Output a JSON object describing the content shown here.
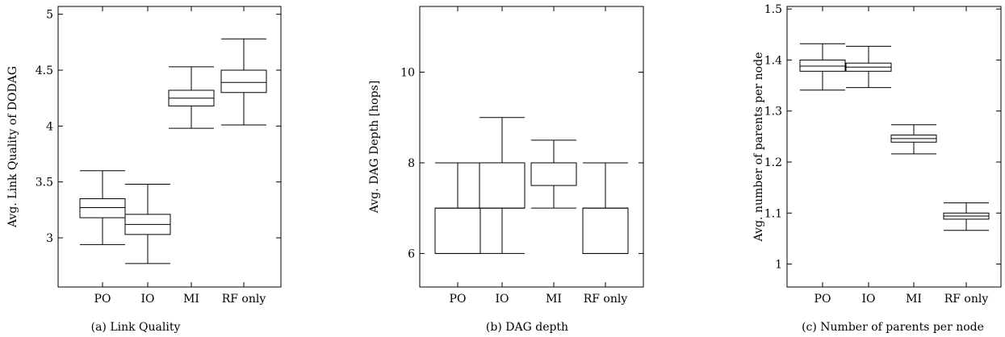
{
  "chart_data": [
    {
      "type": "box",
      "caption": "(a) Link Quality",
      "ylabel": "Avg. Link Quality of DODAG",
      "xlabel": "",
      "categories": [
        "PO",
        "IO",
        "MI",
        "RF only"
      ],
      "ylim": [
        2.56,
        5.07
      ],
      "yticks": [
        "3",
        "3.5",
        "4",
        "4.5",
        "5"
      ],
      "ytick_values": [
        3,
        3.5,
        4,
        4.5,
        5
      ],
      "grid": false,
      "boxes": [
        {
          "category": "PO",
          "whisker_low": 2.94,
          "q1": 3.18,
          "median": 3.27,
          "q3": 3.35,
          "whisker_high": 3.6
        },
        {
          "category": "IO",
          "whisker_low": 2.77,
          "q1": 3.03,
          "median": 3.12,
          "q3": 3.21,
          "whisker_high": 3.48
        },
        {
          "category": "MI",
          "whisker_low": 3.98,
          "q1": 4.18,
          "median": 4.25,
          "q3": 4.32,
          "whisker_high": 4.53
        },
        {
          "category": "RF only",
          "whisker_low": 4.01,
          "q1": 4.3,
          "median": 4.39,
          "q3": 4.5,
          "whisker_high": 4.78
        }
      ]
    },
    {
      "type": "box",
      "caption": "(b) DAG depth",
      "ylabel": "Avg. DAG Depth [hops]",
      "xlabel": "",
      "categories": [
        "PO",
        "IO",
        "MI",
        "RF only"
      ],
      "ylim": [
        5.26,
        11.45
      ],
      "yticks": [
        "6",
        "8",
        "10"
      ],
      "ytick_values": [
        6,
        8,
        10
      ],
      "grid": false,
      "boxes": [
        {
          "category": "PO",
          "whisker_low": 6,
          "q1": 6,
          "median": 7,
          "q3": 7,
          "whisker_high": 8
        },
        {
          "category": "IO",
          "whisker_low": 6,
          "q1": 7,
          "median": 7,
          "q3": 8,
          "whisker_high": 9
        },
        {
          "category": "MI",
          "whisker_low": 7,
          "q1": 7.5,
          "median": 8,
          "q3": 8,
          "whisker_high": 8.5
        },
        {
          "category": "RF only",
          "whisker_low": 6,
          "q1": 6,
          "median": 7,
          "q3": 7,
          "whisker_high": 8
        }
      ]
    },
    {
      "type": "box",
      "caption": "(c) Number of parents per node",
      "ylabel": "Avg. number of parents per node",
      "xlabel": "",
      "categories": [
        "PO",
        "IO",
        "MI",
        "RF only"
      ],
      "ylim": [
        0.955,
        1.505
      ],
      "yticks": [
        "1",
        "1.1",
        "1.2",
        "1.3",
        "1.4",
        "1.5"
      ],
      "ytick_values": [
        1,
        1.1,
        1.2,
        1.3,
        1.4,
        1.5
      ],
      "grid": false,
      "boxes": [
        {
          "category": "PO",
          "whisker_low": 1.341,
          "q1": 1.378,
          "median": 1.388,
          "q3": 1.4,
          "whisker_high": 1.432
        },
        {
          "category": "IO",
          "whisker_low": 1.346,
          "q1": 1.378,
          "median": 1.386,
          "q3": 1.394,
          "whisker_high": 1.427
        },
        {
          "category": "MI",
          "whisker_low": 1.216,
          "q1": 1.239,
          "median": 1.246,
          "q3": 1.253,
          "whisker_high": 1.273
        },
        {
          "category": "RF only",
          "whisker_low": 1.066,
          "q1": 1.088,
          "median": 1.094,
          "q3": 1.1,
          "whisker_high": 1.12
        }
      ]
    }
  ]
}
